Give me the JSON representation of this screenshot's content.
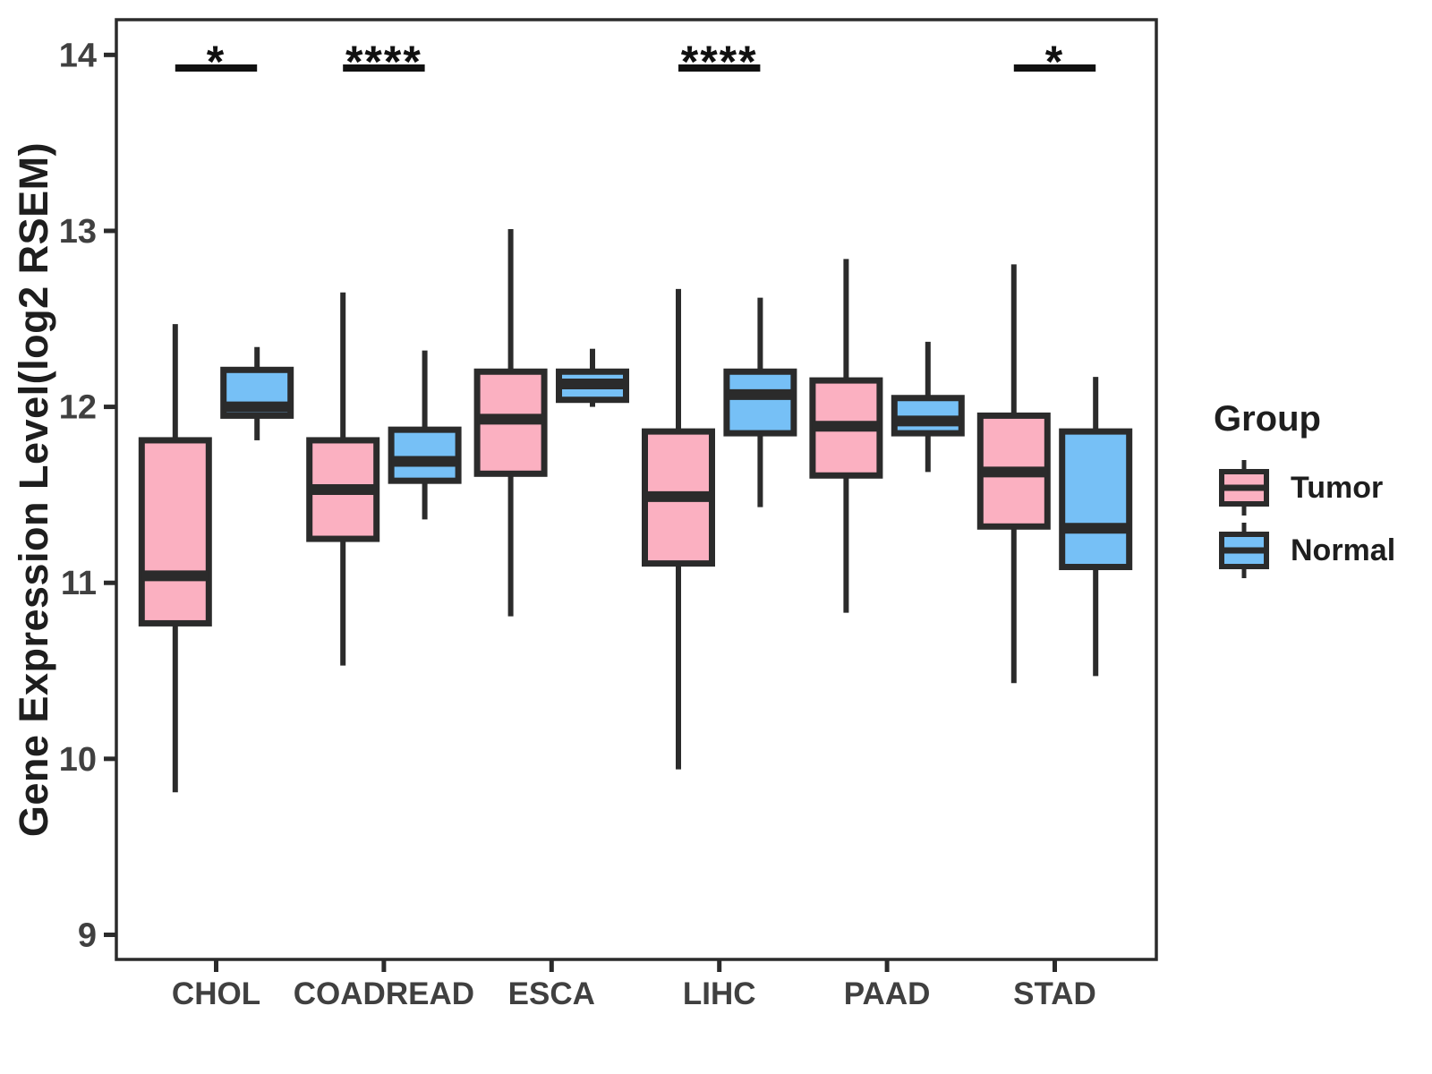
{
  "chart_data": {
    "type": "boxplot",
    "title": "",
    "xlabel": "",
    "ylabel": "Gene Expression Level(log2 RSEM)",
    "ylim": [
      8.86,
      14.2
    ],
    "yticks": [
      9,
      10,
      11,
      12,
      13,
      14
    ],
    "grid": false,
    "categories": [
      "CHOL",
      "COADREAD",
      "ESCA",
      "LIHC",
      "PAAD",
      "STAD"
    ],
    "legend": {
      "title": "Group",
      "position": "right",
      "entries": [
        {
          "label": "Tumor",
          "color": "#FBB0C1"
        },
        {
          "label": "Normal",
          "color": "#76C0F6"
        }
      ]
    },
    "colors": {
      "tumor_fill": "#FBB0C1",
      "normal_fill": "#76C0F6",
      "stroke": "#2B2B2B",
      "axis_text": "#404040",
      "annotation": "#111111",
      "background": "#FFFFFF"
    },
    "series": [
      {
        "name": "Tumor",
        "fill": "#FBB0C1",
        "boxes": [
          {
            "category": "CHOL",
            "whisker_low": 9.81,
            "q1": 10.77,
            "median": 11.04,
            "q3": 11.81,
            "whisker_high": 12.47
          },
          {
            "category": "COADREAD",
            "whisker_low": 10.53,
            "q1": 11.25,
            "median": 11.53,
            "q3": 11.81,
            "whisker_high": 12.65
          },
          {
            "category": "ESCA",
            "whisker_low": 10.81,
            "q1": 11.62,
            "median": 11.93,
            "q3": 12.2,
            "whisker_high": 13.01
          },
          {
            "category": "LIHC",
            "whisker_low": 9.94,
            "q1": 11.11,
            "median": 11.49,
            "q3": 11.86,
            "whisker_high": 12.67
          },
          {
            "category": "PAAD",
            "whisker_low": 10.83,
            "q1": 11.61,
            "median": 11.89,
            "q3": 12.15,
            "whisker_high": 12.84
          },
          {
            "category": "STAD",
            "whisker_low": 10.43,
            "q1": 11.32,
            "median": 11.63,
            "q3": 11.95,
            "whisker_high": 12.81
          }
        ]
      },
      {
        "name": "Normal",
        "fill": "#76C0F6",
        "boxes": [
          {
            "category": "CHOL",
            "whisker_low": 11.81,
            "q1": 11.95,
            "median": 12.0,
            "q3": 12.21,
            "whisker_high": 12.34
          },
          {
            "category": "COADREAD",
            "whisker_low": 11.36,
            "q1": 11.58,
            "median": 11.69,
            "q3": 11.87,
            "whisker_high": 12.32
          },
          {
            "category": "ESCA",
            "whisker_low": 12.0,
            "q1": 12.04,
            "median": 12.13,
            "q3": 12.2,
            "whisker_high": 12.33
          },
          {
            "category": "LIHC",
            "whisker_low": 11.43,
            "q1": 11.85,
            "median": 12.07,
            "q3": 12.2,
            "whisker_high": 12.62
          },
          {
            "category": "PAAD",
            "whisker_low": 11.63,
            "q1": 11.85,
            "median": 11.92,
            "q3": 12.05,
            "whisker_high": 12.37
          },
          {
            "category": "STAD",
            "whisker_low": 10.47,
            "q1": 11.09,
            "median": 11.31,
            "q3": 11.86,
            "whisker_high": 12.17
          }
        ]
      }
    ],
    "significance": [
      {
        "category": "CHOL",
        "stars": "*"
      },
      {
        "category": "COADREAD",
        "stars": "****"
      },
      {
        "category": "LIHC",
        "stars": "****"
      },
      {
        "category": "STAD",
        "stars": "*"
      }
    ]
  }
}
